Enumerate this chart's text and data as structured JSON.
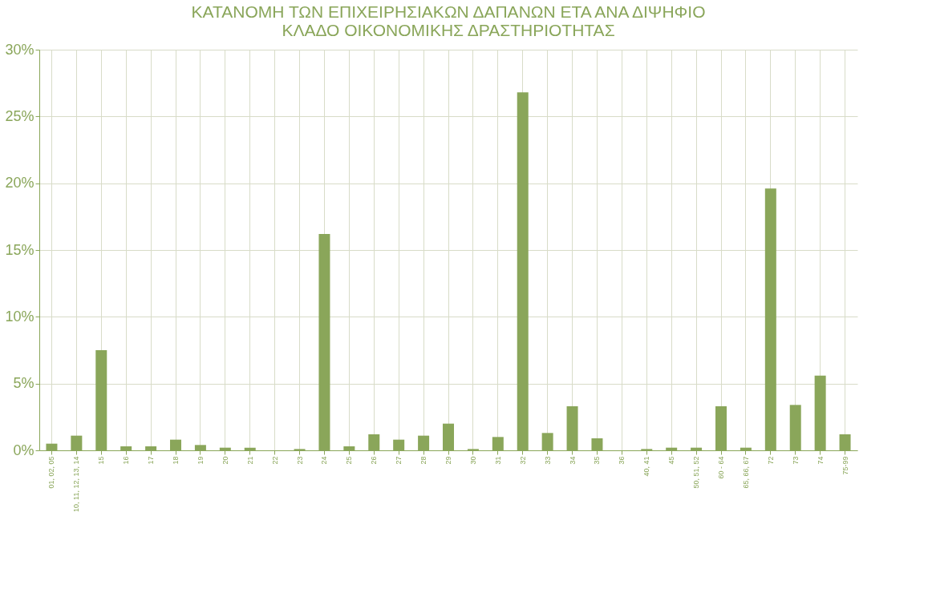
{
  "chart_data": {
    "type": "bar",
    "title": [
      "ΚΑΤΑΝΟΜΗ ΤΩΝ ΕΠΙΧΕΙΡΗΣΙΑΚΩΝ ΔΑΠΑΝΩΝ ΕΤΑ ΑΝΑ ΔΙΨΗΦΙΟ",
      "ΚΛΑΔΟ ΟΙΚΟΝΟΜΙΚΗΣ ΔΡΑΣΤΗΡΙΟΤΗΤΑΣ"
    ],
    "categories": [
      "01, 02, 05",
      "10, 11, 12, 13, 14",
      "15",
      "16",
      "17",
      "18",
      "19",
      "20",
      "21",
      "22",
      "23",
      "24",
      "25",
      "26",
      "27",
      "28",
      "29",
      "30",
      "31",
      "32",
      "33",
      "34",
      "35",
      "36",
      "40, 41",
      "45",
      "50, 51, 52",
      "60 - 64",
      "65, 66, 67",
      "72",
      "73",
      "74",
      "75-99"
    ],
    "values": [
      0.5,
      1.1,
      7.5,
      0.3,
      0.3,
      0.8,
      0.4,
      0.2,
      0.2,
      0,
      0.1,
      16.2,
      0.3,
      1.2,
      0.8,
      1.1,
      2.0,
      0.1,
      1.0,
      26.8,
      1.3,
      3.3,
      0.9,
      0,
      0.1,
      0.2,
      0.2,
      3.3,
      0.2,
      19.6,
      3.4,
      5.6,
      1.2
    ],
    "color": "#8aa65a",
    "ylim": [
      0,
      30
    ],
    "yticks": [
      {
        "value": 0,
        "label": "0%"
      },
      {
        "value": 5,
        "label": "5%"
      },
      {
        "value": 10,
        "label": "10%"
      },
      {
        "value": 15,
        "label": "15%"
      },
      {
        "value": 20,
        "label": "20%"
      },
      {
        "value": 25,
        "label": "25%"
      },
      {
        "value": 30,
        "label": "30%"
      }
    ],
    "grid": true
  }
}
